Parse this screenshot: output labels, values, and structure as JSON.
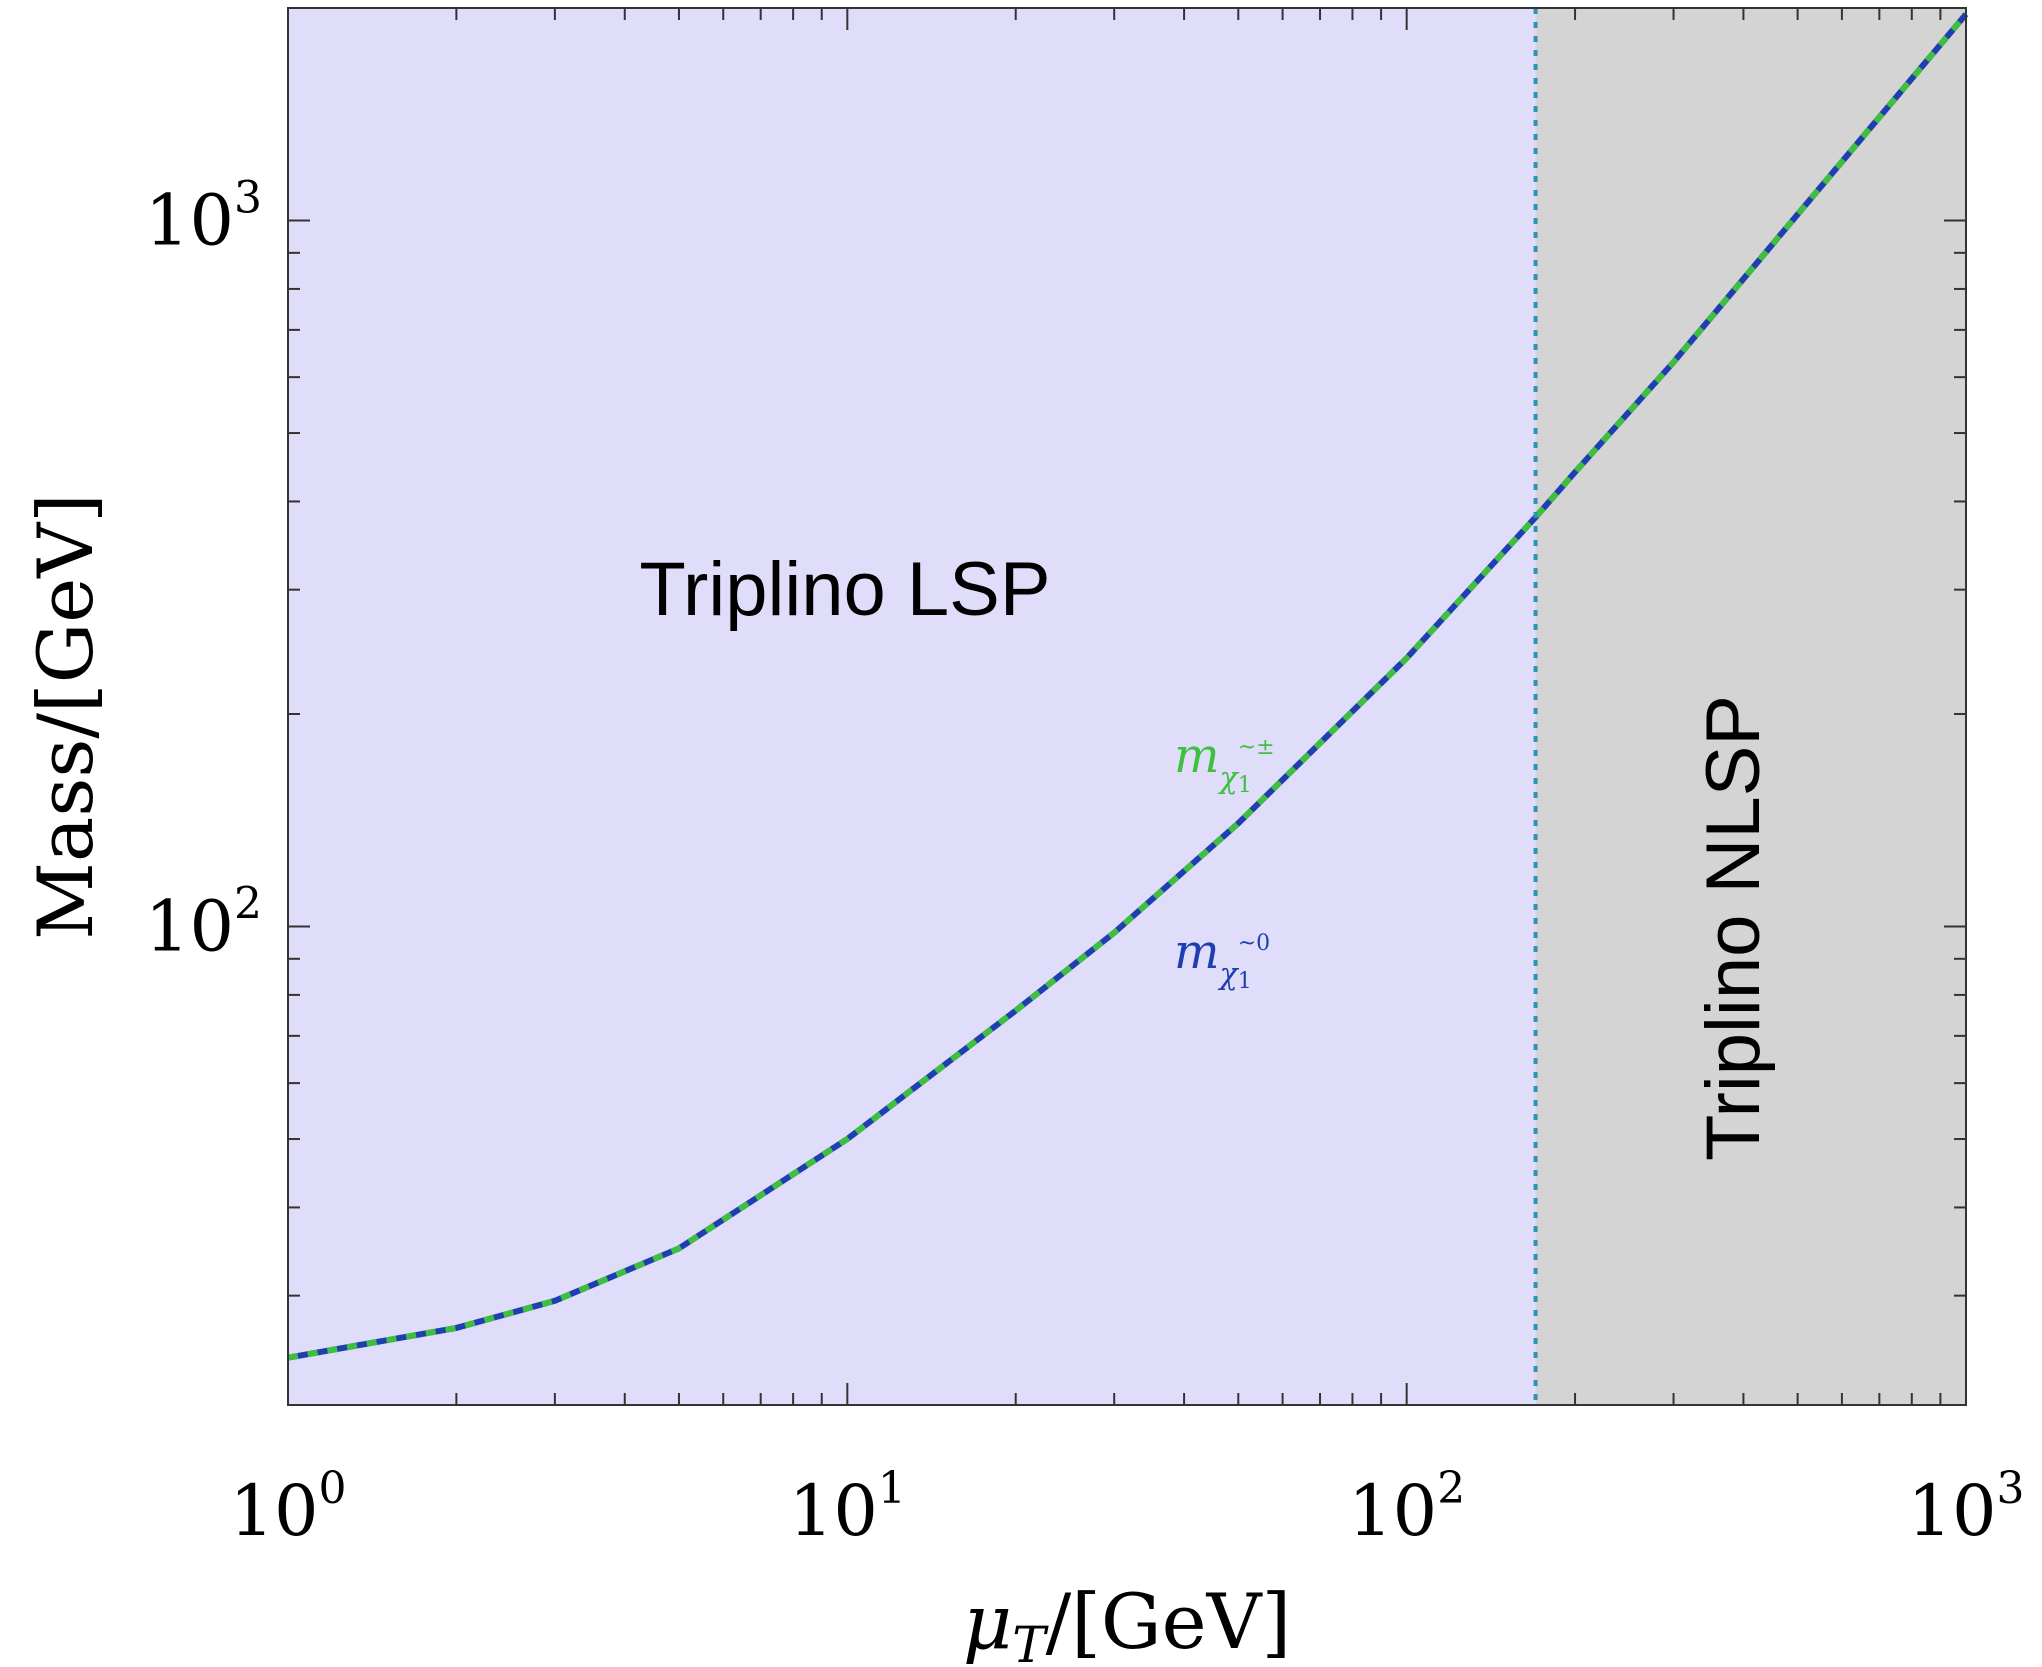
{
  "chart_data": {
    "type": "line",
    "xlabel": "μT/[GeV]",
    "xlabel_parts": {
      "symbol": "μ",
      "subscript": "T",
      "unit": "/[GeV]"
    },
    "ylabel": "Mass/[GeV]",
    "xscale": "log",
    "yscale": "log",
    "xlim": [
      1,
      1000
    ],
    "ylim": [
      21,
      2000
    ],
    "x_ticks": [
      {
        "value": 1,
        "base": "10",
        "exp": "0"
      },
      {
        "value": 10,
        "base": "10",
        "exp": "1"
      },
      {
        "value": 100,
        "base": "10",
        "exp": "2"
      },
      {
        "value": 1000,
        "base": "10",
        "exp": "3"
      }
    ],
    "y_ticks": [
      {
        "value": 100,
        "base": "10",
        "exp": "2"
      },
      {
        "value": 1000,
        "base": "10",
        "exp": "3"
      }
    ],
    "grid": false,
    "regions": [
      {
        "label": "Triplino LSP",
        "x_range": [
          1,
          170
        ],
        "color": "#e0ddfb"
      },
      {
        "label": "Triplino NLSP",
        "x_range": [
          170,
          1000
        ],
        "color": "#d4d4d4",
        "orientation": "vertical"
      }
    ],
    "boundary": {
      "x": 170,
      "color": "#2a94b4",
      "style": "dotted"
    },
    "series": [
      {
        "name": "m χ̃1±",
        "label_main": "m",
        "label_sub": "χ",
        "label_subsub": "1",
        "label_sup": "~±",
        "color": "#3fbf3f",
        "style": "dashed",
        "x": [
          1,
          2,
          3,
          5,
          10,
          20,
          30,
          50,
          100,
          170,
          200,
          300,
          500,
          1000
        ],
        "y": [
          24.5,
          27,
          29.5,
          35,
          50,
          76,
          98,
          140,
          240,
          380,
          440,
          630,
          1020,
          1960
        ]
      },
      {
        "name": "m χ̃1 0",
        "label_main": "m",
        "label_sub": "χ",
        "label_subsub": "1",
        "label_sup": "~0",
        "color": "#1f3fb0",
        "style": "solid",
        "x": [
          1,
          2,
          3,
          5,
          10,
          20,
          30,
          50,
          100,
          170,
          200,
          300,
          500,
          1000
        ],
        "y": [
          24.5,
          27,
          29.5,
          35,
          50,
          76,
          98,
          140,
          240,
          380,
          440,
          630,
          1020,
          1960
        ]
      }
    ]
  }
}
